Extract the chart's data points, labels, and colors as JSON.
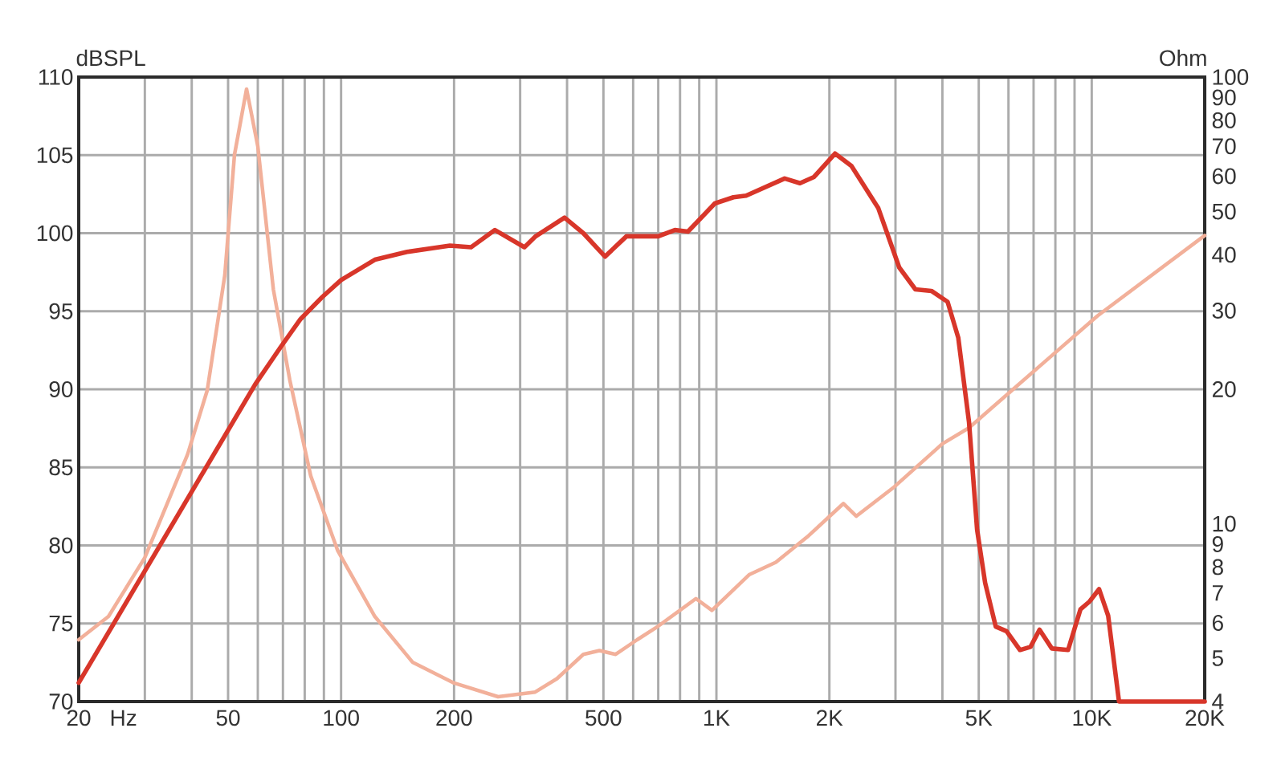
{
  "chart_data": {
    "type": "line",
    "xlabel": "Hz",
    "ylabel": "Ohm",
    "y2label": "dBSPL",
    "log": "xy",
    "grid": true,
    "xlim": [
      20,
      20000
    ],
    "xticks": [
      20,
      {
        "value": 30,
        "label": null
      },
      {
        "value": 40,
        "label": null
      },
      50,
      {
        "value": 60,
        "label": null
      },
      {
        "value": 70,
        "label": null
      },
      {
        "value": 80,
        "label": null
      },
      {
        "value": 90,
        "label": null
      },
      100,
      200,
      {
        "value": 300,
        "label": null
      },
      {
        "value": 400,
        "label": null
      },
      500,
      {
        "value": 600,
        "label": null
      },
      {
        "value": 700,
        "label": null
      },
      {
        "value": 800,
        "label": null
      },
      {
        "value": 900,
        "label": null
      },
      {
        "value": 1000,
        "label": "1K"
      },
      {
        "value": 2000,
        "label": "2K"
      },
      {
        "value": 3000,
        "label": null
      },
      {
        "value": 4000,
        "label": null
      },
      {
        "value": 5000,
        "label": "5K"
      },
      {
        "value": 6000,
        "label": null
      },
      {
        "value": 7000,
        "label": null
      },
      {
        "value": 8000,
        "label": null
      },
      {
        "value": 9000,
        "label": null
      },
      {
        "value": 10000,
        "label": "10K"
      },
      {
        "value": 20000,
        "label": "20K"
      }
    ],
    "ylim": [
      4,
      100
    ],
    "yticks": [
      4,
      5,
      6,
      7,
      8,
      9,
      10,
      20,
      30,
      40,
      50,
      60,
      70,
      80,
      90,
      100
    ],
    "y2lim": [
      70,
      110
    ],
    "y2ticks": [
      70,
      75,
      80,
      85,
      90,
      95,
      100,
      105,
      110
    ],
    "series": [
      {
        "color": "#f2b09a",
        "x": [
          20,
          24,
          30,
          39,
          44,
          49,
          52,
          56,
          60,
          66,
          73,
          83,
          98,
          123,
          155,
          200,
          262,
          329,
          376,
          442,
          488,
          539,
          615,
          700,
          882,
          973,
          1225,
          1440,
          1760,
          2180,
          2360,
          2980,
          4000,
          4710,
          6130,
          7970,
          10360,
          20000
        ],
        "values": [
          5.5,
          6.2,
          8.4,
          14.3,
          19.9,
          36,
          67,
          94,
          70,
          33.5,
          21,
          12.8,
          8.7,
          6.2,
          4.9,
          4.4,
          4.1,
          4.2,
          4.5,
          5.1,
          5.2,
          5.1,
          5.5,
          5.9,
          6.8,
          6.4,
          7.7,
          8.2,
          9.4,
          11.1,
          10.4,
          12.1,
          15.1,
          16.4,
          19.9,
          24.1,
          29.2,
          44.2
        ]
      },
      {
        "color": "#d8362a",
        "axis": "y2",
        "x": [
          20,
          59,
          69,
          78,
          89,
          100,
          123,
          150,
          195,
          222,
          257,
          308,
          330,
          394,
          442,
          505,
          576,
          700,
          775,
          840,
          990,
          1110,
          1200,
          1520,
          1670,
          1820,
          2070,
          2290,
          2700,
          3070,
          3390,
          3740,
          4130,
          4410,
          4710,
          4950,
          5200,
          5550,
          5930,
          6440,
          6870,
          7260,
          7830,
          8650,
          9330,
          9860,
          10460,
          11060,
          11820,
          20000
        ],
        "values": [
          71.2,
          90.3,
          92.7,
          94.5,
          95.9,
          97.0,
          98.3,
          98.8,
          99.2,
          99.1,
          100.2,
          99.1,
          99.8,
          101.0,
          100.0,
          98.5,
          99.8,
          99.8,
          100.2,
          100.1,
          101.9,
          102.3,
          102.4,
          103.5,
          103.2,
          103.6,
          105.1,
          104.3,
          101.6,
          97.8,
          96.4,
          96.3,
          95.6,
          93.3,
          87.9,
          81.0,
          77.6,
          74.8,
          74.5,
          73.3,
          73.5,
          74.6,
          73.4,
          73.3,
          75.9,
          76.4,
          77.2,
          75.5,
          70.0,
          70.0
        ]
      }
    ]
  }
}
